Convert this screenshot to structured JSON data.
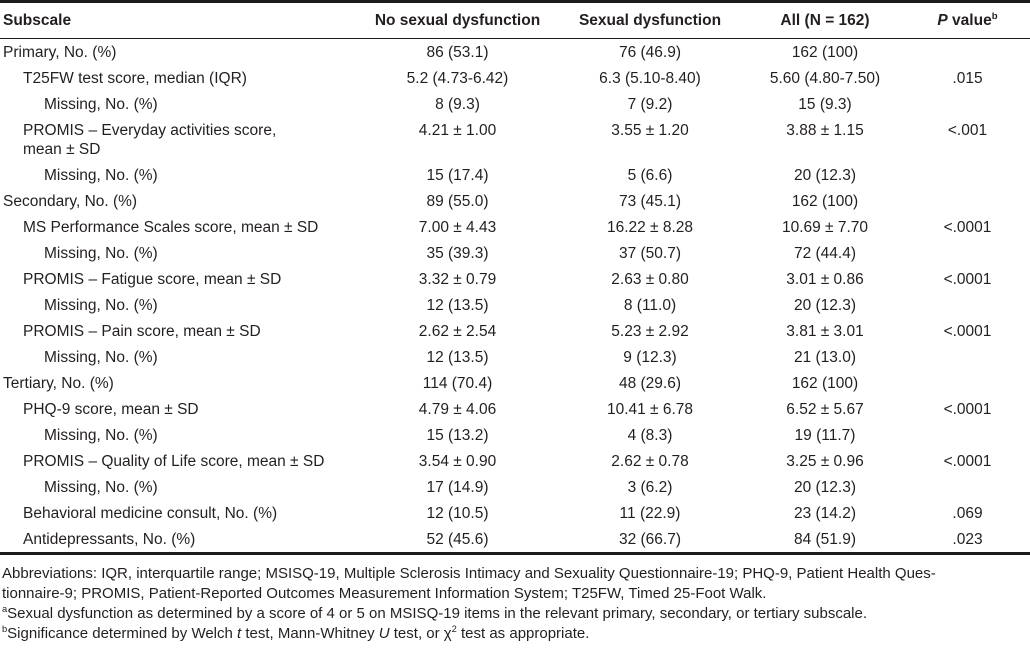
{
  "colors": {
    "text": "#231f20",
    "rule": "#1c1c1c",
    "background": "#ffffff"
  },
  "table": {
    "columns": [
      {
        "id": "subscale",
        "label": "Subscale"
      },
      {
        "id": "no-sexual-dysfunction",
        "label": "No sexual dysfunction"
      },
      {
        "id": "sexual-dysfunction",
        "label": "Sexual dysfunction"
      },
      {
        "id": "all",
        "label": "All (N = 162)"
      },
      {
        "id": "p-value",
        "label": "*P* value^b^"
      }
    ],
    "rows": [
      {
        "label": "Primary, No. (%)",
        "indent": 0,
        "values": [
          "86 (53.1)",
          "76 (46.9)",
          "162 (100)",
          ""
        ]
      },
      {
        "label": "T25FW test score, median (IQR)",
        "indent": 1,
        "values": [
          "5.2 (4.73-6.42)",
          "6.3 (5.10-8.40)",
          "5.60 (4.80-7.50)",
          ".015"
        ]
      },
      {
        "label": "Missing, No. (%)",
        "indent": 2,
        "values": [
          "8 (9.3)",
          "7 (9.2)",
          "15 (9.3)",
          ""
        ]
      },
      {
        "label": "PROMIS – Everyday activities score,",
        "label2": "mean ± SD",
        "indent": 1,
        "values": [
          "4.21 ± 1.00",
          "3.55 ± 1.20",
          "3.88 ± 1.15",
          "<.001"
        ]
      },
      {
        "label": "Missing, No. (%)",
        "indent": 2,
        "values": [
          "15 (17.4)",
          "5 (6.6)",
          "20 (12.3)",
          ""
        ]
      },
      {
        "label": "Secondary, No. (%)",
        "indent": 0,
        "values": [
          "89 (55.0)",
          "73 (45.1)",
          "162 (100)",
          ""
        ]
      },
      {
        "label": "MS Performance Scales score, mean ± SD",
        "indent": 1,
        "values": [
          "7.00 ± 4.43",
          "16.22 ± 8.28",
          "10.69 ± 7.70",
          "<.0001"
        ]
      },
      {
        "label": "Missing, No. (%)",
        "indent": 2,
        "values": [
          "35 (39.3)",
          "37 (50.7)",
          "72 (44.4)",
          ""
        ]
      },
      {
        "label": "PROMIS – Fatigue score, mean ± SD",
        "indent": 1,
        "values": [
          "3.32 ± 0.79",
          "2.63 ± 0.80",
          "3.01 ± 0.86",
          "<.0001"
        ]
      },
      {
        "label": "Missing, No. (%)",
        "indent": 2,
        "values": [
          "12 (13.5)",
          "8 (11.0)",
          "20 (12.3)",
          ""
        ]
      },
      {
        "label": "PROMIS – Pain score, mean ± SD",
        "indent": 1,
        "values": [
          "2.62 ± 2.54",
          "5.23 ± 2.92",
          "3.81 ± 3.01",
          "<.0001"
        ]
      },
      {
        "label": "Missing, No. (%)",
        "indent": 2,
        "values": [
          "12 (13.5)",
          "9 (12.3)",
          "21 (13.0)",
          ""
        ]
      },
      {
        "label": "Tertiary, No. (%)",
        "indent": 0,
        "values": [
          "114 (70.4)",
          "48 (29.6)",
          "162 (100)",
          ""
        ]
      },
      {
        "label": "PHQ-9 score, mean ± SD",
        "indent": 1,
        "values": [
          "4.79 ± 4.06",
          "10.41 ± 6.78",
          "6.52 ± 5.67",
          "<.0001"
        ]
      },
      {
        "label": "Missing, No. (%)",
        "indent": 2,
        "values": [
          "15 (13.2)",
          "4 (8.3)",
          "19 (11.7)",
          ""
        ]
      },
      {
        "label": "PROMIS – Quality of Life score, mean ± SD",
        "indent": 1,
        "values": [
          "3.54 ± 0.90",
          "2.62 ± 0.78",
          "3.25 ± 0.96",
          "<.0001"
        ]
      },
      {
        "label": "Missing, No. (%)",
        "indent": 2,
        "values": [
          "17 (14.9)",
          "3 (6.2)",
          "20 (12.3)",
          ""
        ]
      },
      {
        "label": "Behavioral medicine consult, No. (%)",
        "indent": 1,
        "values": [
          "12 (10.5)",
          "11 (22.9)",
          "23 (14.2)",
          ".069"
        ]
      },
      {
        "label": "Antidepressants, No. (%)",
        "indent": 1,
        "values": [
          "52 (45.6)",
          "32 (66.7)",
          "84 (51.9)",
          ".023"
        ]
      }
    ]
  },
  "footnotes": {
    "abbreviations_line1": "Abbreviations: IQR, interquartile range; MSISQ-19, Multiple Sclerosis Intimacy and Sexuality Questionnaire-19; PHQ-9, Patient Health Ques-",
    "abbreviations_line2": "tionnaire-9; PROMIS, Patient-Reported Outcomes Measurement Information System; T25FW, Timed 25-Foot Walk.",
    "note_a": "^a^Sexual dysfunction as determined by a score of 4 or 5 on MSISQ-19 items in the relevant primary, secondary, or tertiary subscale.",
    "note_b": "^b^Significance determined by Welch *t* test, Mann-Whitney *U* test, or χ^2^ test as appropriate."
  }
}
